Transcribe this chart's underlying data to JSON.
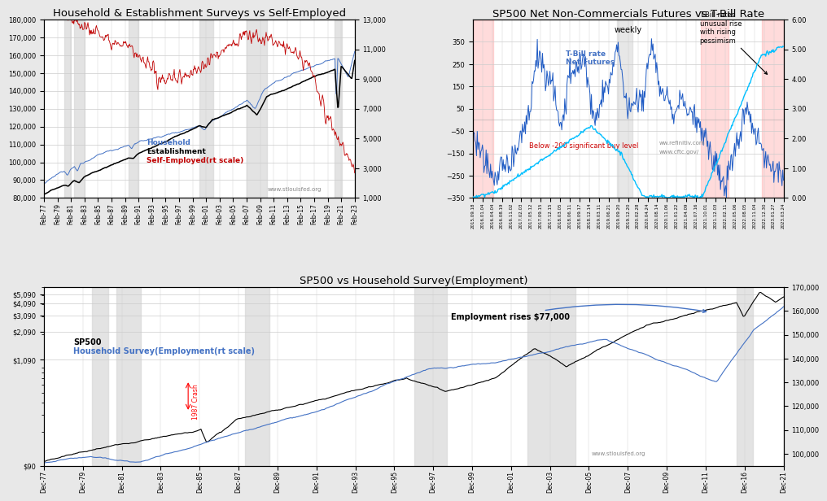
{
  "fig_bg": "#e8e8e8",
  "panel1": {
    "title": "Household & Establishment Surveys vs Self-Employed",
    "title_fontsize": 9.5,
    "ylim_left": [
      80000,
      180000
    ],
    "ylim_right": [
      1000,
      13000
    ],
    "yticks_left": [
      80000,
      90000,
      100000,
      110000,
      120000,
      130000,
      140000,
      150000,
      160000,
      170000,
      180000
    ],
    "yticks_right": [
      1000,
      3000,
      5000,
      7000,
      9000,
      11000,
      13000
    ],
    "watermark": "www.stlouisfed.org",
    "household_color": "#4472C4",
    "establishment_color": "#000000",
    "self_employed_color": "#C00000",
    "xticklabels": [
      "Feb-77",
      "Feb-79",
      "Feb-81",
      "Feb-83",
      "Feb-85",
      "Feb-87",
      "Feb-89",
      "Feb-91",
      "Feb-93",
      "Feb-95",
      "Feb-97",
      "Feb-99",
      "Feb-01",
      "Feb-03",
      "Feb-05",
      "Feb-07",
      "Feb-09",
      "Feb-11",
      "Feb-13",
      "Feb-15",
      "Feb-17",
      "Feb-19",
      "Feb-21",
      "Feb-23"
    ]
  },
  "panel2": {
    "title": "SP500 Net Non-Commercials Futures vs T-Bill Rate",
    "subtitle": "weekly",
    "title_fontsize": 9.5,
    "ylim_left": [
      -350,
      450
    ],
    "ylim_right": [
      0.0,
      6.0
    ],
    "yticks_left": [
      -350,
      -250,
      -150,
      -50,
      50,
      150,
      250,
      350
    ],
    "yticks_right": [
      0.0,
      1.0,
      2.0,
      3.0,
      4.0,
      5.0,
      6.0
    ],
    "net_futures_color": "#1F5BC4",
    "tbill_color": "#00BFFF",
    "annotation_tbill": "T-Bill rates\nunusual rise\nwith rising\npessimism",
    "annotation_legend": "T-Bill rate\nNet Futures",
    "annotation_buy": "Below -200 significant buy level",
    "watermark1": "ww.refinitiv.com",
    "watermark2": "www.cftc.gov/",
    "red_band_alpha": 0.35,
    "gray_band_alpha": 0.3
  },
  "panel3": {
    "title": "SP500 vs Household Survey(Employment)",
    "title_fontsize": 9.5,
    "ylim_right": [
      95000,
      170000
    ],
    "yticks_right": [
      100000,
      110000,
      120000,
      130000,
      140000,
      150000,
      160000,
      170000
    ],
    "sp500_color": "#000000",
    "household_color": "#4472C4",
    "annotation_employment": "Employment rises $77,000",
    "annotation_sp500": "SP500",
    "annotation_household": "Household Survey(Employment(rt scale)",
    "annotation_crash": "1987 Crash",
    "watermark": "www.stlouisfed.org",
    "xticklabels": [
      "Dec-77",
      "Dec-79",
      "Dec-81",
      "Dec-83",
      "Dec-85",
      "Dec-87",
      "Dec-89",
      "Dec-91",
      "Dec-93",
      "Dec-95",
      "Dec-97",
      "Dec-99",
      "Dec-01",
      "Dec-03",
      "Dec-05",
      "Dec-07",
      "Dec-09",
      "Dec-11",
      "Dec-16",
      "Dec-21"
    ]
  }
}
